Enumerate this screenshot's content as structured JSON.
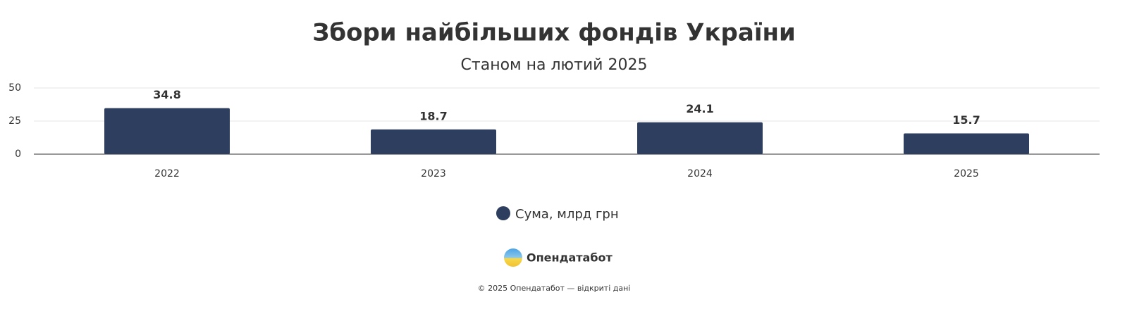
{
  "chart_data": {
    "type": "bar",
    "title": "Збори найбільших фондів України",
    "subtitle": "Станом на лютий 2025",
    "categories": [
      "2022",
      "2023",
      "2024",
      "2025"
    ],
    "series": [
      {
        "name": "Сума, млрд грн",
        "color": "#2e3e5e",
        "values": [
          34.8,
          18.7,
          24.1,
          15.7
        ]
      }
    ],
    "ylim": [
      0,
      50
    ],
    "yticks": [
      0,
      25,
      50
    ],
    "grid": true,
    "legend": "bottom"
  },
  "footer": {
    "brand": "Опендатабот",
    "copyright": "© 2025 Опендатабот — відкриті дані"
  }
}
